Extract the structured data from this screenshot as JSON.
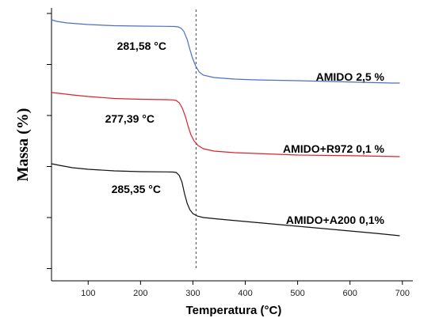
{
  "chart_data": {
    "type": "line",
    "xlabel": "Temperatura (°C)",
    "ylabel": "Massa (%)",
    "xlim": [
      30,
      720
    ],
    "x_ticks": [
      100,
      200,
      300,
      400,
      500,
      600,
      700
    ],
    "y_ticks_count": 6,
    "grid": false,
    "reference_line_x": 306,
    "series": [
      {
        "name": "AMIDO 2,5 %",
        "color": "#4a6fc4",
        "points": [
          [
            30,
            25
          ],
          [
            40,
            27
          ],
          [
            60,
            29
          ],
          [
            80,
            30
          ],
          [
            100,
            31
          ],
          [
            150,
            32.5
          ],
          [
            200,
            33
          ],
          [
            250,
            33.3
          ],
          [
            265,
            33.5
          ],
          [
            272,
            34
          ],
          [
            278,
            36
          ],
          [
            283,
            40
          ],
          [
            289,
            50
          ],
          [
            294,
            62
          ],
          [
            299,
            73
          ],
          [
            305,
            83
          ],
          [
            312,
            91
          ],
          [
            320,
            95
          ],
          [
            340,
            98
          ],
          [
            380,
            100
          ],
          [
            420,
            101
          ],
          [
            460,
            101.5
          ],
          [
            500,
            102
          ],
          [
            560,
            103
          ],
          [
            620,
            104
          ],
          [
            680,
            105
          ],
          [
            695,
            105
          ]
        ],
        "annotation": "281,58 °C"
      },
      {
        "name": "AMIDO+R972 0,1 %",
        "color": "#e0222a",
        "points": [
          [
            30,
            117
          ],
          [
            45,
            118
          ],
          [
            70,
            120
          ],
          [
            100,
            122
          ],
          [
            150,
            124.5
          ],
          [
            200,
            125.5
          ],
          [
            250,
            126
          ],
          [
            262,
            126.3
          ],
          [
            268,
            127
          ],
          [
            274,
            130
          ],
          [
            280,
            137
          ],
          [
            286,
            148
          ],
          [
            291,
            160
          ],
          [
            296,
            170
          ],
          [
            302,
            178
          ],
          [
            310,
            184
          ],
          [
            320,
            188
          ],
          [
            340,
            191
          ],
          [
            380,
            193
          ],
          [
            420,
            194
          ],
          [
            460,
            195
          ],
          [
            500,
            196
          ],
          [
            560,
            196.5
          ],
          [
            620,
            197
          ],
          [
            695,
            198
          ]
        ],
        "annotation": "277,39 °C"
      },
      {
        "name": "AMIDO+A200 0,1%",
        "color": "#111111",
        "points": [
          [
            30,
            207
          ],
          [
            45,
            209
          ],
          [
            70,
            212
          ],
          [
            100,
            214
          ],
          [
            150,
            216
          ],
          [
            200,
            217
          ],
          [
            250,
            217.3
          ],
          [
            262,
            217.5
          ],
          [
            268,
            218
          ],
          [
            274,
            222
          ],
          [
            279,
            230
          ],
          [
            284,
            245
          ],
          [
            289,
            257
          ],
          [
            294,
            265
          ],
          [
            300,
            270
          ],
          [
            308,
            273
          ],
          [
            320,
            275
          ],
          [
            350,
            277
          ],
          [
            400,
            280
          ],
          [
            450,
            283
          ],
          [
            500,
            286
          ],
          [
            550,
            289
          ],
          [
            600,
            292
          ],
          [
            650,
            295
          ],
          [
            695,
            298
          ]
        ],
        "annotation": "285,35 °C"
      }
    ]
  }
}
